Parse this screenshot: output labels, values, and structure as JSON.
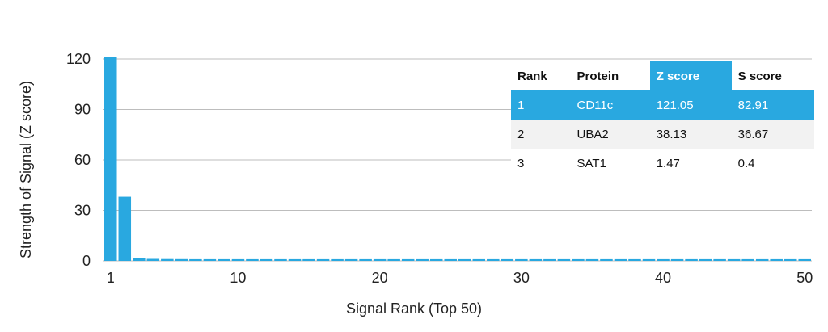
{
  "chart_data": {
    "type": "bar",
    "xlabel": "Signal Rank (Top 50)",
    "ylabel": "Strength of Signal (Z score)",
    "ylim": [
      0,
      120
    ],
    "yticks": [
      0,
      30,
      60,
      90,
      120
    ],
    "xticks": [
      1,
      10,
      20,
      30,
      40,
      50
    ],
    "x": [
      1,
      2,
      3,
      4,
      5,
      6,
      7,
      8,
      9,
      10,
      11,
      12,
      13,
      14,
      15,
      16,
      17,
      18,
      19,
      20,
      21,
      22,
      23,
      24,
      25,
      26,
      27,
      28,
      29,
      30,
      31,
      32,
      33,
      34,
      35,
      36,
      37,
      38,
      39,
      40,
      41,
      42,
      43,
      44,
      45,
      46,
      47,
      48,
      49,
      50
    ],
    "values": [
      121.05,
      38.13,
      1.47,
      1.2,
      1.1,
      1.05,
      1.0,
      1.0,
      1.0,
      1.0,
      1.0,
      1.0,
      1.0,
      1.0,
      1.0,
      1.0,
      1.0,
      1.0,
      1.0,
      1.0,
      1.0,
      1.0,
      1.0,
      1.0,
      1.0,
      1.0,
      1.0,
      1.0,
      1.0,
      1.0,
      1.0,
      1.0,
      1.0,
      1.0,
      1.0,
      1.0,
      1.0,
      1.0,
      1.0,
      1.0,
      1.0,
      1.0,
      1.0,
      1.0,
      1.0,
      1.0,
      1.0,
      1.0,
      1.0,
      1.0
    ],
    "grid": true,
    "colors": {
      "bar": "#29a8e0",
      "highlight": "#29a8e0"
    }
  },
  "table": {
    "headers": [
      "Rank",
      "Protein",
      "Z score",
      "S score"
    ],
    "highlight_header": 2,
    "rows": [
      [
        "1",
        "CD11c",
        "121.05",
        "82.91"
      ],
      [
        "2",
        "UBA2",
        "38.13",
        "36.67"
      ],
      [
        "3",
        "SAT1",
        "1.47",
        "0.4"
      ]
    ]
  }
}
